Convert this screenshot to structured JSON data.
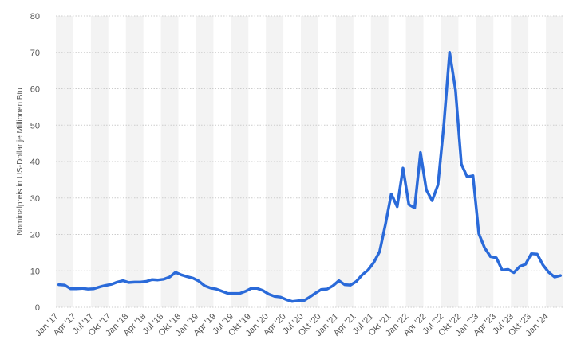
{
  "chart_data": {
    "type": "line",
    "ylabel": "Nominalpreis in US-Dollar je Millionen Btu",
    "xlabel": "",
    "ylim": [
      0,
      80
    ],
    "yticks": [
      0,
      10,
      20,
      30,
      40,
      50,
      60,
      70,
      80
    ],
    "grid": "horizontal dashed",
    "colors": {
      "line": "#2a6ad9",
      "grid": "#cccccc",
      "band": "#f3f3f3"
    },
    "x_tick_labels": [
      "Jan '17",
      "Apr '17",
      "Jul '17",
      "Okt '17",
      "Jan '18",
      "Apr '18",
      "Jul '18",
      "Okt '18",
      "Jan '19",
      "Apr '19",
      "Jul '19",
      "Okt '19",
      "Jan '20",
      "Apr '20",
      "Jul '20",
      "Okt '20",
      "Jan '21",
      "Apr '21",
      "Jul '21",
      "Okt '21",
      "Jan '22",
      "Apr '22",
      "Jul '22",
      "Okt '22",
      "Jan '23",
      "Apr '23",
      "Jul '23",
      "Okt '23",
      "Jan '24"
    ],
    "x": [
      "2017-01",
      "2017-02",
      "2017-03",
      "2017-04",
      "2017-05",
      "2017-06",
      "2017-07",
      "2017-08",
      "2017-09",
      "2017-10",
      "2017-11",
      "2017-12",
      "2018-01",
      "2018-02",
      "2018-03",
      "2018-04",
      "2018-05",
      "2018-06",
      "2018-07",
      "2018-08",
      "2018-09",
      "2018-10",
      "2018-11",
      "2018-12",
      "2019-01",
      "2019-02",
      "2019-03",
      "2019-04",
      "2019-05",
      "2019-06",
      "2019-07",
      "2019-08",
      "2019-09",
      "2019-10",
      "2019-11",
      "2019-12",
      "2020-01",
      "2020-02",
      "2020-03",
      "2020-04",
      "2020-05",
      "2020-06",
      "2020-07",
      "2020-08",
      "2020-09",
      "2020-10",
      "2020-11",
      "2020-12",
      "2021-01",
      "2021-02",
      "2021-03",
      "2021-04",
      "2021-05",
      "2021-06",
      "2021-07",
      "2021-08",
      "2021-09",
      "2021-10",
      "2021-11",
      "2021-12",
      "2022-01",
      "2022-02",
      "2022-03",
      "2022-04",
      "2022-05",
      "2022-06",
      "2022-07",
      "2022-08",
      "2022-09",
      "2022-10",
      "2022-11",
      "2022-12",
      "2023-01",
      "2023-02",
      "2023-03",
      "2023-04",
      "2023-05",
      "2023-06",
      "2023-07",
      "2023-08",
      "2023-09",
      "2023-10",
      "2023-11",
      "2023-12",
      "2024-01",
      "2024-02",
      "2024-03"
    ],
    "series": [
      {
        "values": [
          6.2,
          6.1,
          5.1,
          5.1,
          5.2,
          5.0,
          5.1,
          5.6,
          6.0,
          6.3,
          6.9,
          7.3,
          6.8,
          6.9,
          6.9,
          7.1,
          7.6,
          7.5,
          7.7,
          8.3,
          9.6,
          8.9,
          8.4,
          8.0,
          7.2,
          5.9,
          5.3,
          5.0,
          4.4,
          3.8,
          3.8,
          3.8,
          4.4,
          5.2,
          5.2,
          4.6,
          3.6,
          3.0,
          2.8,
          2.1,
          1.6,
          1.8,
          1.8,
          2.8,
          3.9,
          4.9,
          5.0,
          5.9,
          7.3,
          6.2,
          6.1,
          7.1,
          8.9,
          10.2,
          12.3,
          15.3,
          22.8,
          31.1,
          27.6,
          38.2,
          28.2,
          27.3,
          42.5,
          32.2,
          29.3,
          33.6,
          49.9,
          70.0,
          59.6,
          39.3,
          35.8,
          36.1,
          20.2,
          16.3,
          13.9,
          13.6,
          10.2,
          10.4,
          9.5,
          11.2,
          11.8,
          14.7,
          14.6,
          11.6,
          9.6,
          8.3,
          8.7
        ]
      }
    ]
  }
}
